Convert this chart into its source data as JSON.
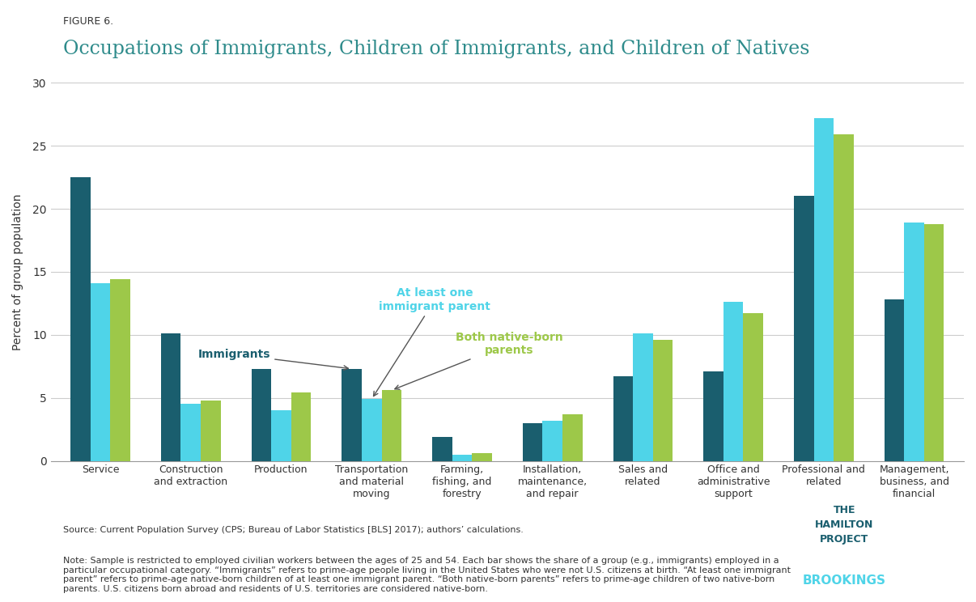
{
  "figure_label": "FIGURE 6.",
  "title": "Occupations of Immigrants, Children of Immigrants, and Children of Natives",
  "ylabel": "Percent of group population",
  "categories": [
    "Service",
    "Construction\nand extraction",
    "Production",
    "Transportation\nand material\nmoving",
    "Farming,\nfishing, and\nforestry",
    "Installation,\nmaintenance,\nand repair",
    "Sales and\nrelated",
    "Office and\nadministrative\nsupport",
    "Professional and\nrelated",
    "Management,\nbusiness, and\nfinancial"
  ],
  "series": {
    "Immigrants": [
      22.5,
      10.1,
      7.3,
      7.3,
      1.9,
      3.0,
      6.7,
      7.1,
      21.0,
      12.8
    ],
    "At least one\nimmigrant parent": [
      14.1,
      4.5,
      4.0,
      4.9,
      0.5,
      3.2,
      10.1,
      12.6,
      27.2,
      18.9
    ],
    "Both native-born\nparents": [
      14.4,
      4.8,
      5.4,
      5.6,
      0.6,
      3.7,
      9.6,
      11.7,
      25.9,
      18.8
    ]
  },
  "colors": {
    "Immigrants": "#1a5e6e",
    "At least one\nimmigrant parent": "#4fd4e8",
    "Both native-born\nparents": "#9dc849"
  },
  "ylim": [
    0,
    30
  ],
  "yticks": [
    0,
    5,
    10,
    15,
    20,
    25,
    30
  ],
  "background_color": "#ffffff",
  "grid_color": "#cccccc",
  "title_color": "#2e8b8b",
  "figure_label_color": "#333333",
  "source_text": "Source: Current Population Survey (CPS; Bureau of Labor Statistics [BLS] 2017); authors’ calculations.",
  "note_text": "Note: Sample is restricted to employed civilian workers between the ages of 25 and 54. Each bar shows the share of a group (e.g., immigrants) employed in a\nparticular occupational category. “Immigrants” refers to prime-age people living in the United States who were not U.S. citizens at birth. “At least one immigrant\nparent” refers to prime-age native-born children of at least one immigrant parent. “Both native-born parents” refers to prime-age children of two native-born\nparents. U.S. citizens born abroad and residents of U.S. territories are considered native-born."
}
